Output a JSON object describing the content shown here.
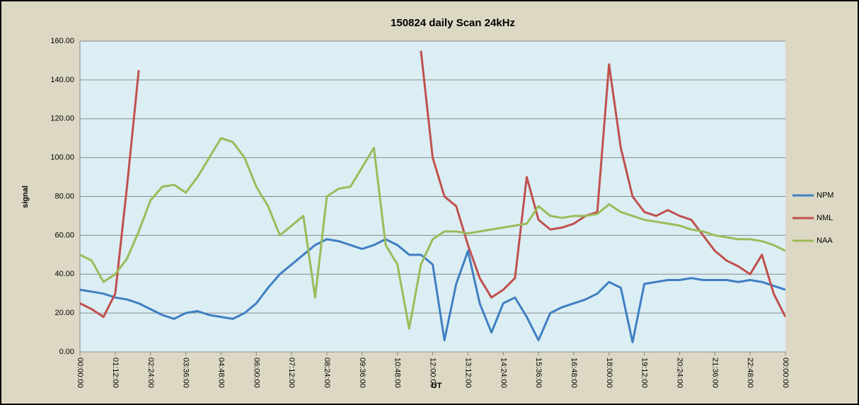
{
  "chart_data": {
    "type": "line",
    "title": "150824 daily Scan 24kHz",
    "xlabel": "UT",
    "ylabel": "signal",
    "x": [
      0,
      0.4,
      0.8,
      1.2,
      1.6,
      2.0,
      2.4,
      2.8,
      3.2,
      3.6,
      4.0,
      4.4,
      4.8,
      5.2,
      5.6,
      6.0,
      6.4,
      6.8,
      7.2,
      7.6,
      8.0,
      8.4,
      8.8,
      9.2,
      9.6,
      10.0,
      10.4,
      10.8,
      11.2,
      11.6,
      12.0,
      12.4,
      12.8,
      13.2,
      13.6,
      14.0,
      14.4,
      14.8,
      15.2,
      15.6,
      16.0,
      16.4,
      16.8,
      17.2,
      17.6,
      18.0,
      18.4,
      18.8,
      19.2,
      19.6,
      20.0,
      20.4,
      20.8,
      21.2,
      21.6,
      22.0,
      22.4,
      22.8,
      23.2,
      23.6,
      24.0
    ],
    "series": [
      {
        "name": "NPM",
        "color": "#3f7fc2",
        "values": [
          32,
          31,
          30,
          28,
          27,
          25,
          22,
          19,
          17,
          20,
          21,
          19,
          18,
          17,
          20,
          25,
          33,
          40,
          45,
          50,
          55,
          58,
          57,
          55,
          53,
          55,
          58,
          55,
          50,
          50,
          45,
          6,
          35,
          52,
          25,
          10,
          25,
          28,
          18,
          6,
          20,
          23,
          25,
          27,
          30,
          36,
          33,
          5,
          35,
          36,
          37,
          37,
          38,
          37,
          37,
          37,
          36,
          37,
          36,
          34,
          32
        ]
      },
      {
        "name": "NML",
        "color": "#c0504d",
        "values": [
          25,
          22,
          18,
          30,
          85,
          145,
          null,
          null,
          null,
          null,
          null,
          null,
          null,
          null,
          null,
          null,
          null,
          null,
          null,
          null,
          null,
          null,
          null,
          null,
          null,
          null,
          null,
          null,
          null,
          155,
          100,
          80,
          75,
          55,
          38,
          28,
          32,
          38,
          90,
          68,
          63,
          64,
          66,
          70,
          72,
          148,
          105,
          80,
          72,
          70,
          73,
          70,
          68,
          60,
          52,
          47,
          44,
          40,
          50,
          30,
          18
        ]
      },
      {
        "name": "NAA",
        "color": "#9bbb59",
        "values": [
          50,
          47,
          36,
          40,
          48,
          62,
          78,
          85,
          86,
          82,
          90,
          100,
          110,
          108,
          100,
          85,
          75,
          60,
          65,
          70,
          28,
          80,
          84,
          85,
          95,
          105,
          55,
          45,
          12,
          45,
          58,
          62,
          62,
          61,
          62,
          63,
          64,
          65,
          66,
          75,
          70,
          69,
          70,
          70,
          71,
          76,
          72,
          70,
          68,
          67,
          66,
          65,
          63,
          62,
          60,
          59,
          58,
          58,
          57,
          55,
          52
        ]
      }
    ],
    "xlim": [
      0,
      24
    ],
    "xticks": [
      {
        "value": 0,
        "label": "00:00:00"
      },
      {
        "value": 1.2,
        "label": "01:12:00"
      },
      {
        "value": 2.4,
        "label": "02:24:00"
      },
      {
        "value": 3.6,
        "label": "03:36:00"
      },
      {
        "value": 4.8,
        "label": "04:48:00"
      },
      {
        "value": 6,
        "label": "06:00:00"
      },
      {
        "value": 7.2,
        "label": "07:12:00"
      },
      {
        "value": 8.4,
        "label": "08:24:00"
      },
      {
        "value": 9.6,
        "label": "09:36:00"
      },
      {
        "value": 10.8,
        "label": "10:48:00"
      },
      {
        "value": 12,
        "label": "12:00:00"
      },
      {
        "value": 13.2,
        "label": "13:12:00"
      },
      {
        "value": 14.4,
        "label": "14:24:00"
      },
      {
        "value": 15.6,
        "label": "15:36:00"
      },
      {
        "value": 16.8,
        "label": "16:48:00"
      },
      {
        "value": 18,
        "label": "18:00:00"
      },
      {
        "value": 19.2,
        "label": "19:12:00"
      },
      {
        "value": 20.4,
        "label": "20:24:00"
      },
      {
        "value": 21.6,
        "label": "21:36:00"
      },
      {
        "value": 22.8,
        "label": "22:48:00"
      },
      {
        "value": 24,
        "label": "00:00:00"
      }
    ],
    "ylim": [
      0,
      160
    ],
    "yticks": [
      {
        "value": 0,
        "label": "0.00"
      },
      {
        "value": 20,
        "label": "20.00"
      },
      {
        "value": 40,
        "label": "40.00"
      },
      {
        "value": 60,
        "label": "60.00"
      },
      {
        "value": 80,
        "label": "80.00"
      },
      {
        "value": 100,
        "label": "100.00"
      },
      {
        "value": 120,
        "label": "120.00"
      },
      {
        "value": 140,
        "label": "140.00"
      },
      {
        "value": 160,
        "label": "160.00"
      }
    ],
    "grid": true,
    "legend": "right"
  }
}
